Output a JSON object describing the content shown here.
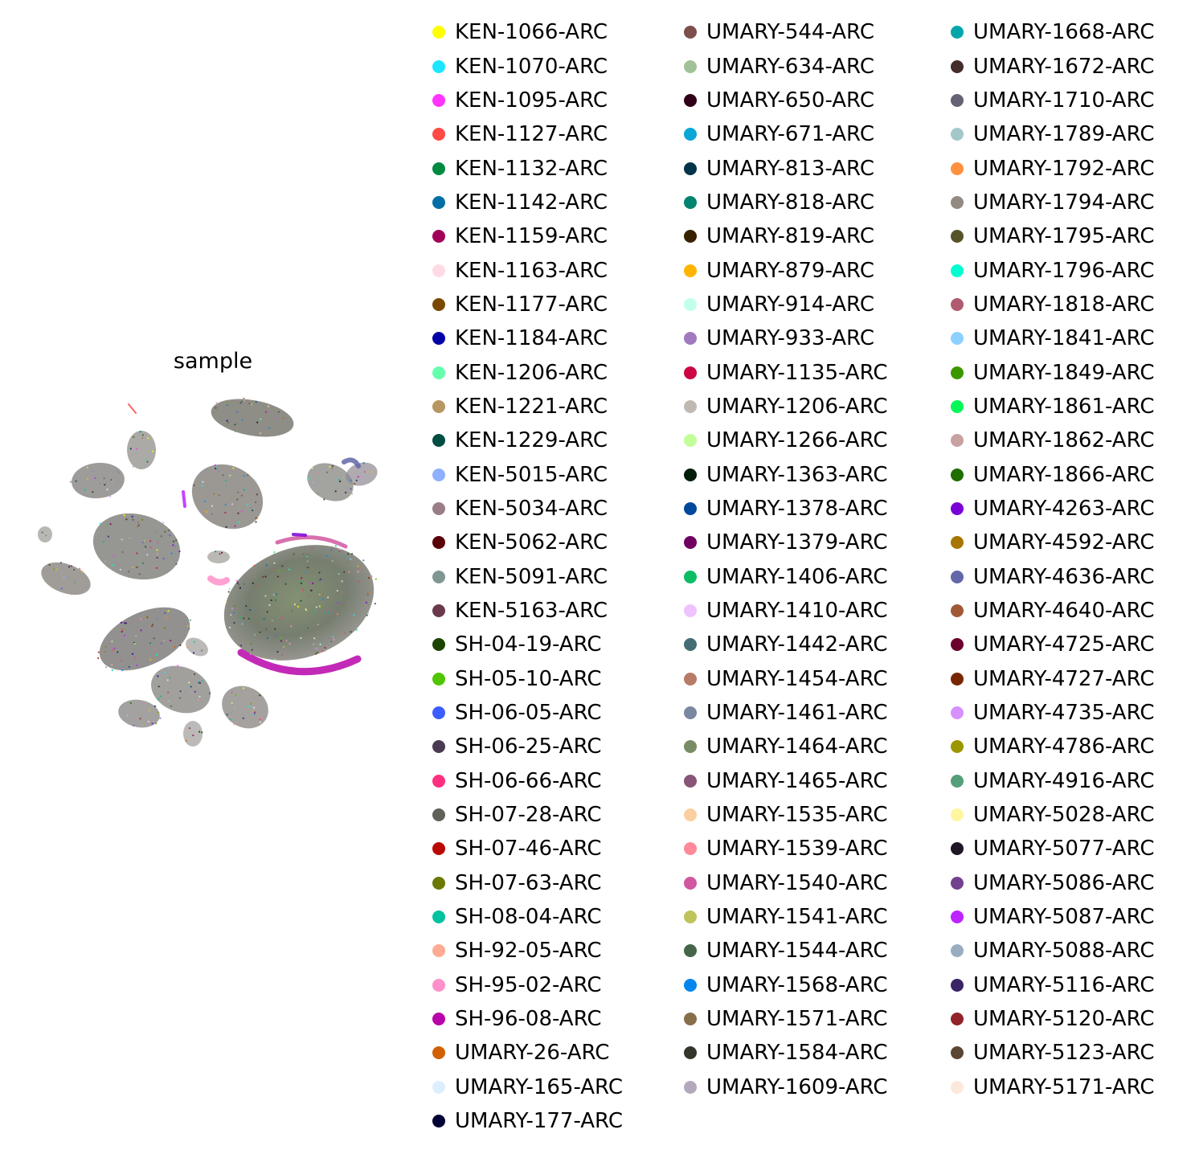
{
  "chart_data": {
    "type": "scatter",
    "title": "sample",
    "xlabel": "",
    "ylabel": "",
    "axes_visible": false,
    "legend_position": "right",
    "legend_columns": 3,
    "categories": [
      {
        "name": "KEN-1066-ARC",
        "color": "#ffff00"
      },
      {
        "name": "KEN-1070-ARC",
        "color": "#1ce6ff"
      },
      {
        "name": "KEN-1095-ARC",
        "color": "#ff34ff"
      },
      {
        "name": "KEN-1127-ARC",
        "color": "#ff4a46"
      },
      {
        "name": "KEN-1132-ARC",
        "color": "#008941"
      },
      {
        "name": "KEN-1142-ARC",
        "color": "#006fa6"
      },
      {
        "name": "KEN-1159-ARC",
        "color": "#a30059"
      },
      {
        "name": "KEN-1163-ARC",
        "color": "#ffdbe5"
      },
      {
        "name": "KEN-1177-ARC",
        "color": "#7a4900"
      },
      {
        "name": "KEN-1184-ARC",
        "color": "#0000a6"
      },
      {
        "name": "KEN-1206-ARC",
        "color": "#63ffac"
      },
      {
        "name": "KEN-1221-ARC",
        "color": "#b79762"
      },
      {
        "name": "KEN-1229-ARC",
        "color": "#004d43"
      },
      {
        "name": "KEN-5015-ARC",
        "color": "#8fb0ff"
      },
      {
        "name": "KEN-5034-ARC",
        "color": "#997d87"
      },
      {
        "name": "KEN-5062-ARC",
        "color": "#5a0007"
      },
      {
        "name": "KEN-5091-ARC",
        "color": "#809693"
      },
      {
        "name": "KEN-5163-ARC",
        "color": "#6a3a4c"
      },
      {
        "name": "SH-04-19-ARC",
        "color": "#1b4400"
      },
      {
        "name": "SH-05-10-ARC",
        "color": "#4fc601"
      },
      {
        "name": "SH-06-05-ARC",
        "color": "#3b5dff"
      },
      {
        "name": "SH-06-25-ARC",
        "color": "#4a3b53"
      },
      {
        "name": "SH-06-66-ARC",
        "color": "#ff2f80"
      },
      {
        "name": "SH-07-28-ARC",
        "color": "#61615a"
      },
      {
        "name": "SH-07-46-ARC",
        "color": "#ba0900"
      },
      {
        "name": "SH-07-63-ARC",
        "color": "#6b7900"
      },
      {
        "name": "SH-08-04-ARC",
        "color": "#00c2a0"
      },
      {
        "name": "SH-92-05-ARC",
        "color": "#ffaa92"
      },
      {
        "name": "SH-95-02-ARC",
        "color": "#ff90c9"
      },
      {
        "name": "SH-96-08-ARC",
        "color": "#b903aa"
      },
      {
        "name": "UMARY-26-ARC",
        "color": "#d16100"
      },
      {
        "name": "UMARY-165-ARC",
        "color": "#ddefff"
      },
      {
        "name": "UMARY-177-ARC",
        "color": "#000035"
      },
      {
        "name": "UMARY-544-ARC",
        "color": "#7b4f4b"
      },
      {
        "name": "UMARY-634-ARC",
        "color": "#a1c299"
      },
      {
        "name": "UMARY-650-ARC",
        "color": "#300018"
      },
      {
        "name": "UMARY-671-ARC",
        "color": "#0aa6d8"
      },
      {
        "name": "UMARY-813-ARC",
        "color": "#013349"
      },
      {
        "name": "UMARY-818-ARC",
        "color": "#00846f"
      },
      {
        "name": "UMARY-819-ARC",
        "color": "#372101"
      },
      {
        "name": "UMARY-879-ARC",
        "color": "#ffb500"
      },
      {
        "name": "UMARY-914-ARC",
        "color": "#c2ffed"
      },
      {
        "name": "UMARY-933-ARC",
        "color": "#a079bf"
      },
      {
        "name": "UMARY-1135-ARC",
        "color": "#cc0744"
      },
      {
        "name": "UMARY-1206-ARC",
        "color": "#c0b9b2"
      },
      {
        "name": "UMARY-1266-ARC",
        "color": "#c2ff99"
      },
      {
        "name": "UMARY-1363-ARC",
        "color": "#001e09"
      },
      {
        "name": "UMARY-1378-ARC",
        "color": "#00489c"
      },
      {
        "name": "UMARY-1379-ARC",
        "color": "#6f0062"
      },
      {
        "name": "UMARY-1406-ARC",
        "color": "#0cbd66"
      },
      {
        "name": "UMARY-1410-ARC",
        "color": "#eec3ff"
      },
      {
        "name": "UMARY-1442-ARC",
        "color": "#456d75"
      },
      {
        "name": "UMARY-1454-ARC",
        "color": "#b77b68"
      },
      {
        "name": "UMARY-1461-ARC",
        "color": "#7a87a1"
      },
      {
        "name": "UMARY-1464-ARC",
        "color": "#788d66"
      },
      {
        "name": "UMARY-1465-ARC",
        "color": "#885578"
      },
      {
        "name": "UMARY-1535-ARC",
        "color": "#fad09f"
      },
      {
        "name": "UMARY-1539-ARC",
        "color": "#ff8a9a"
      },
      {
        "name": "UMARY-1540-ARC",
        "color": "#d157a0"
      },
      {
        "name": "UMARY-1541-ARC",
        "color": "#bec459"
      },
      {
        "name": "UMARY-1544-ARC",
        "color": "#456648"
      },
      {
        "name": "UMARY-1568-ARC",
        "color": "#0086ed"
      },
      {
        "name": "UMARY-1571-ARC",
        "color": "#886f4c"
      },
      {
        "name": "UMARY-1584-ARC",
        "color": "#34362d"
      },
      {
        "name": "UMARY-1609-ARC",
        "color": "#b4a8bd"
      },
      {
        "name": "UMARY-1668-ARC",
        "color": "#00a6aa"
      },
      {
        "name": "UMARY-1672-ARC",
        "color": "#452c2c"
      },
      {
        "name": "UMARY-1710-ARC",
        "color": "#636375"
      },
      {
        "name": "UMARY-1789-ARC",
        "color": "#a3c8c9"
      },
      {
        "name": "UMARY-1792-ARC",
        "color": "#ff913f"
      },
      {
        "name": "UMARY-1794-ARC",
        "color": "#938a81"
      },
      {
        "name": "UMARY-1795-ARC",
        "color": "#575329"
      },
      {
        "name": "UMARY-1796-ARC",
        "color": "#00fecf"
      },
      {
        "name": "UMARY-1818-ARC",
        "color": "#b05b6f"
      },
      {
        "name": "UMARY-1841-ARC",
        "color": "#8cd0ff"
      },
      {
        "name": "UMARY-1849-ARC",
        "color": "#3b9700"
      },
      {
        "name": "UMARY-1861-ARC",
        "color": "#04f757"
      },
      {
        "name": "UMARY-1862-ARC",
        "color": "#c8a1a1"
      },
      {
        "name": "UMARY-1866-ARC",
        "color": "#1e6e00"
      },
      {
        "name": "UMARY-4263-ARC",
        "color": "#7900d7"
      },
      {
        "name": "UMARY-4592-ARC",
        "color": "#a77500"
      },
      {
        "name": "UMARY-4636-ARC",
        "color": "#6367a9"
      },
      {
        "name": "UMARY-4640-ARC",
        "color": "#a05837"
      },
      {
        "name": "UMARY-4725-ARC",
        "color": "#6b002c"
      },
      {
        "name": "UMARY-4727-ARC",
        "color": "#772600"
      },
      {
        "name": "UMARY-4735-ARC",
        "color": "#d790ff"
      },
      {
        "name": "UMARY-4786-ARC",
        "color": "#9b9700"
      },
      {
        "name": "UMARY-4916-ARC",
        "color": "#549e79"
      },
      {
        "name": "UMARY-5028-ARC",
        "color": "#fff69f"
      },
      {
        "name": "UMARY-5077-ARC",
        "color": "#201625"
      },
      {
        "name": "UMARY-5086-ARC",
        "color": "#72418f"
      },
      {
        "name": "UMARY-5087-ARC",
        "color": "#bc23ff"
      },
      {
        "name": "UMARY-5088-ARC",
        "color": "#99adc0"
      },
      {
        "name": "UMARY-5116-ARC",
        "color": "#3a2465"
      },
      {
        "name": "UMARY-5120-ARC",
        "color": "#922329"
      },
      {
        "name": "UMARY-5123-ARC",
        "color": "#5b4534"
      },
      {
        "name": "UMARY-5171-ARC",
        "color": "#fde8dc"
      }
    ]
  }
}
